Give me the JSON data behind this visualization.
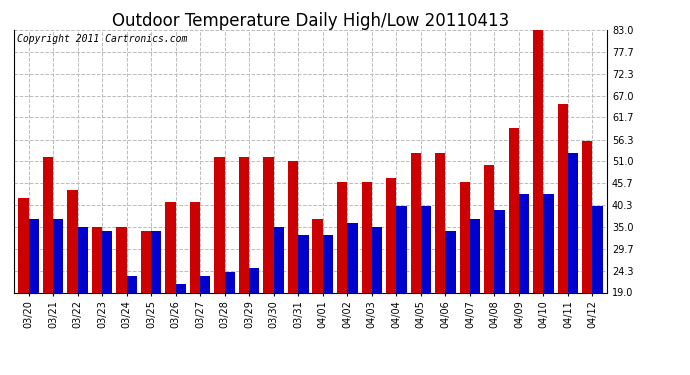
{
  "title": "Outdoor Temperature Daily High/Low 20110413",
  "copyright": "Copyright 2011 Cartronics.com",
  "dates": [
    "03/20",
    "03/21",
    "03/22",
    "03/23",
    "03/24",
    "03/25",
    "03/26",
    "03/27",
    "03/28",
    "03/29",
    "03/30",
    "03/31",
    "04/01",
    "04/02",
    "04/03",
    "04/04",
    "04/05",
    "04/06",
    "04/07",
    "04/08",
    "04/09",
    "04/10",
    "04/11",
    "04/12"
  ],
  "highs": [
    42,
    52,
    44,
    35,
    35,
    34,
    41,
    41,
    52,
    52,
    52,
    51,
    37,
    46,
    46,
    47,
    53,
    53,
    46,
    50,
    59,
    84,
    65,
    56
  ],
  "lows": [
    37,
    37,
    35,
    34,
    23,
    34,
    21,
    23,
    24,
    25,
    35,
    33,
    33,
    36,
    35,
    40,
    40,
    34,
    37,
    39,
    43,
    43,
    53,
    40
  ],
  "high_color": "#cc0000",
  "low_color": "#0000cc",
  "background_color": "#ffffff",
  "grid_color": "#bbbbbb",
  "ymin": 19.0,
  "ymax": 83.0,
  "yticks": [
    19.0,
    24.3,
    29.7,
    35.0,
    40.3,
    45.7,
    51.0,
    56.3,
    61.7,
    67.0,
    72.3,
    77.7,
    83.0
  ],
  "title_fontsize": 12,
  "copyright_fontsize": 7,
  "tick_fontsize": 7,
  "bar_width": 0.42
}
